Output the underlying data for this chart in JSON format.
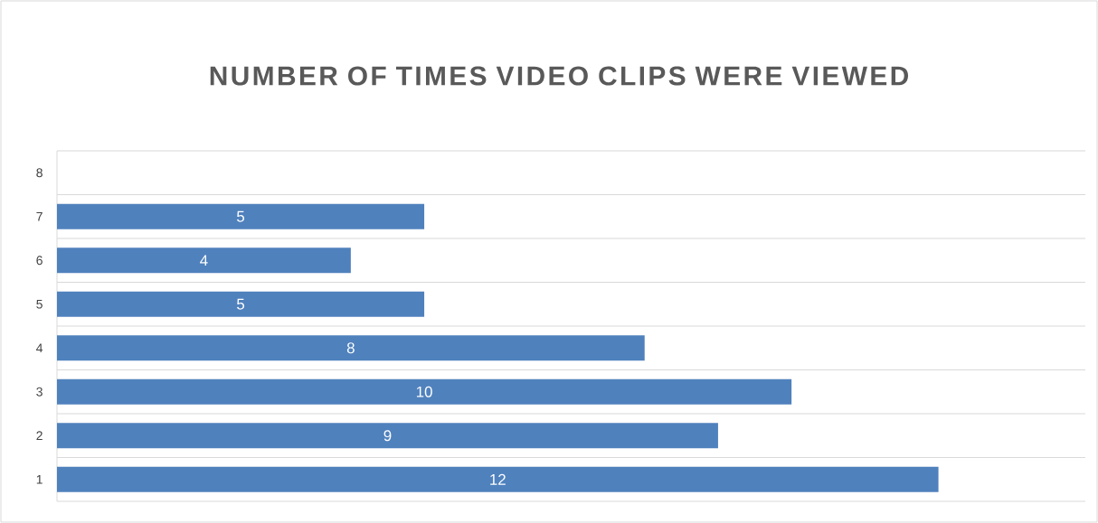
{
  "chart_data": {
    "type": "bar",
    "orientation": "horizontal",
    "title": "NUMBER OF TIMES VIDEO CLIPS WERE VIEWED",
    "categories": [
      "8",
      "7",
      "6",
      "5",
      "4",
      "3",
      "2",
      "1"
    ],
    "values": [
      null,
      5,
      4,
      5,
      8,
      10,
      9,
      12
    ],
    "color": "#4f81bd",
    "xlim": [
      0,
      14
    ],
    "data_labels": true,
    "grid": "y",
    "tick_labels": "y"
  }
}
